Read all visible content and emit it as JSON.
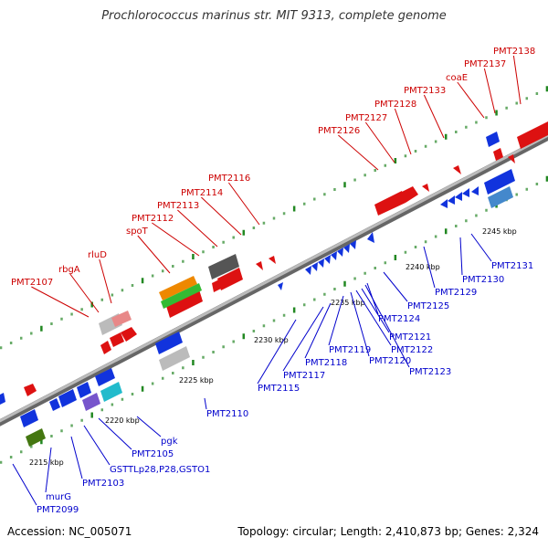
{
  "title": "Prochlorococcus marinus str. MIT 9313, complete genome",
  "footer": {
    "accession": "Accession: NC_005071",
    "summary": "Topology: circular; Length: 2,410,873 bp; Genes: 2,324"
  },
  "colors": {
    "top_strand_label": "#cc0000",
    "bottom_strand_label": "#0000cc",
    "backbone": "#999999",
    "tick_major": "#228822",
    "tick_minor": "#66aa66"
  },
  "scale_ticks": [
    {
      "label": "2215 kbp",
      "kbp": 2215
    },
    {
      "label": "2220 kbp",
      "kbp": 2220
    },
    {
      "label": "2225 kbp",
      "kbp": 2225
    },
    {
      "label": "2230 kbp",
      "kbp": 2230
    },
    {
      "label": "2235 kbp",
      "kbp": 2235
    },
    {
      "label": "2240 kbp",
      "kbp": 2240
    },
    {
      "label": "2245 kbp",
      "kbp": 2245
    }
  ],
  "top_labels": [
    "PMT2107",
    "rbgA",
    "rluD",
    "spoT",
    "PMT2112",
    "PMT2113",
    "PMT2114",
    "PMT2116",
    "PMT2126",
    "PMT2127",
    "PMT2128",
    "PMT2133",
    "coaE",
    "PMT2137",
    "PMT2138"
  ],
  "bottom_labels": [
    "PMT2099",
    "murG",
    "PMT2103",
    "GSTTLp28,P28,GSTO1",
    "PMT2105",
    "pgk",
    "PMT2110",
    "PMT2115",
    "PMT2117",
    "PMT2118",
    "PMT2119",
    "PMT2120",
    "PMT2121",
    "PMT2122",
    "PMT2123",
    "PMT2124",
    "PMT2125",
    "PMT2129",
    "PMT2130",
    "PMT2131"
  ]
}
